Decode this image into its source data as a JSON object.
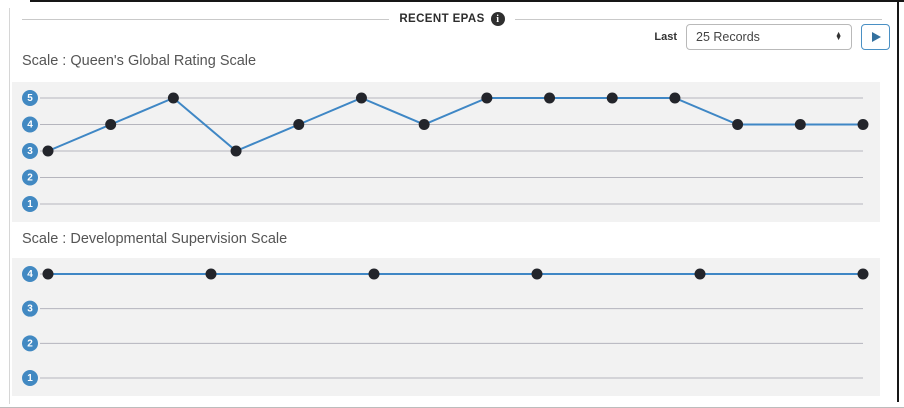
{
  "header": {
    "title": "RECENT EPAS"
  },
  "icons": {
    "info_glyph": "i",
    "select_arrow_up": "▲",
    "select_arrow_down": "▼"
  },
  "controls": {
    "last_label": "Last",
    "records_value": "25 Records"
  },
  "colors": {
    "line": "#3f87c5",
    "point": "#23252b",
    "badge_bg": "#4289c2",
    "badge_text": "#ffffff",
    "panel_bg": "#f2f2f2",
    "gridline": "#b5b5bd",
    "accent": "#4a90c4"
  },
  "chart_data": [
    {
      "type": "line",
      "title": "Scale : Queen's Global Rating Scale",
      "y_levels": [
        5,
        4,
        3,
        2,
        1
      ],
      "ylim": [
        1,
        5
      ],
      "values": [
        3,
        4,
        5,
        3,
        4,
        5,
        4,
        5,
        5,
        5,
        5,
        4,
        4,
        4
      ],
      "xlabel": "",
      "ylabel": "",
      "grid": true,
      "legend": "none"
    },
    {
      "type": "line",
      "title": "Scale : Developmental Supervision Scale",
      "y_levels": [
        4,
        3,
        2,
        1
      ],
      "ylim": [
        1,
        4
      ],
      "values": [
        4,
        4,
        4,
        4,
        4,
        4
      ],
      "xlabel": "",
      "ylabel": "",
      "grid": true,
      "legend": "none"
    }
  ]
}
